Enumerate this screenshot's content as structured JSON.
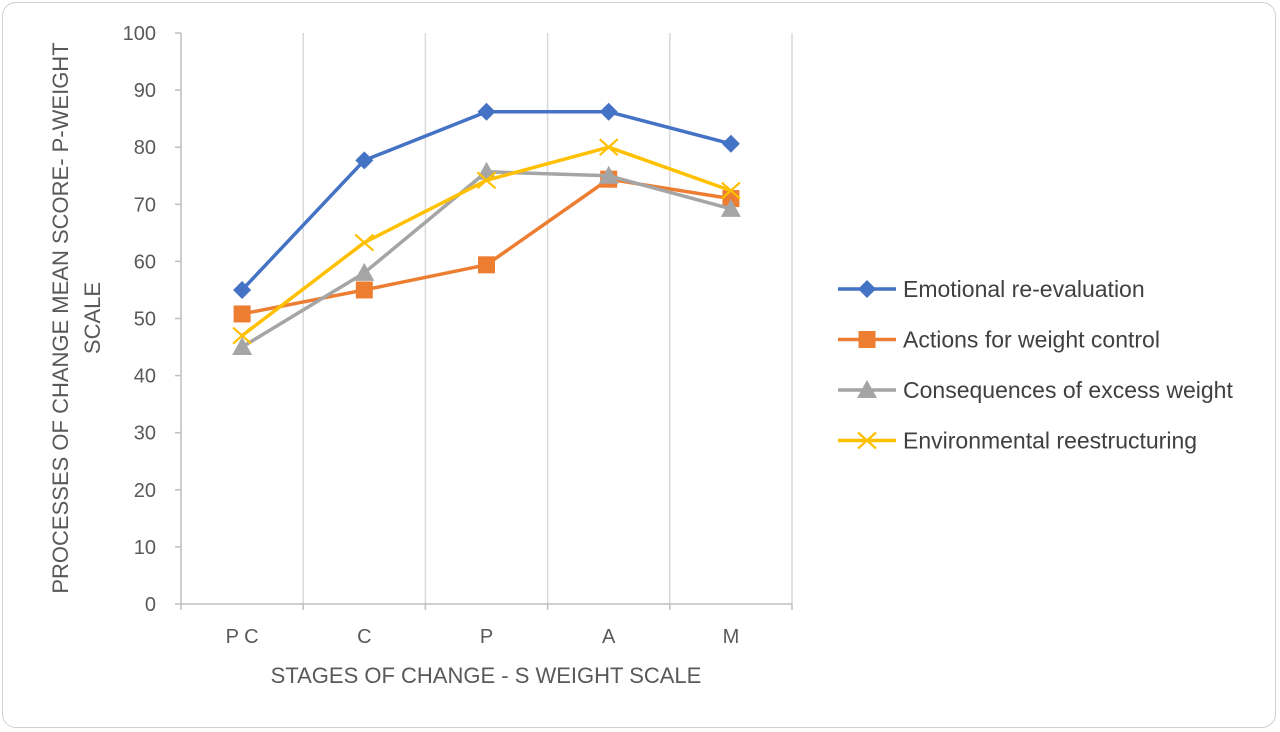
{
  "chart_data": {
    "type": "line",
    "title": "",
    "xlabel": "STAGES OF CHANGE - S WEIGHT SCALE",
    "ylabel_lines": [
      "PROCESSES OF CHANGE MEAN SCORE- P-WEIGHT",
      "SCALE"
    ],
    "categories": [
      "P C",
      "C",
      "P",
      "A",
      "M"
    ],
    "ylim": [
      0,
      100
    ],
    "yticks": [
      0,
      10,
      20,
      30,
      40,
      50,
      60,
      70,
      80,
      90,
      100
    ],
    "grid": "vertical",
    "legend_position": "right",
    "series": [
      {
        "name": "Emotional re-evaluation",
        "color": "#4472C4",
        "marker": "diamond",
        "values": [
          55,
          77.7,
          86.2,
          86.2,
          80.6
        ]
      },
      {
        "name": "Actions for weight control",
        "color": "#ED7D31",
        "marker": "square",
        "values": [
          50.8,
          55,
          59.4,
          74.4,
          71
        ]
      },
      {
        "name": "Consequences of excess weight",
        "color": "#A5A5A5",
        "marker": "triangle",
        "values": [
          45,
          58,
          75.7,
          75,
          69.2
        ]
      },
      {
        "name": "Environmental reestructuring",
        "color": "#FFC000",
        "marker": "x",
        "values": [
          47,
          63.3,
          74.2,
          80,
          72.4
        ]
      }
    ]
  }
}
